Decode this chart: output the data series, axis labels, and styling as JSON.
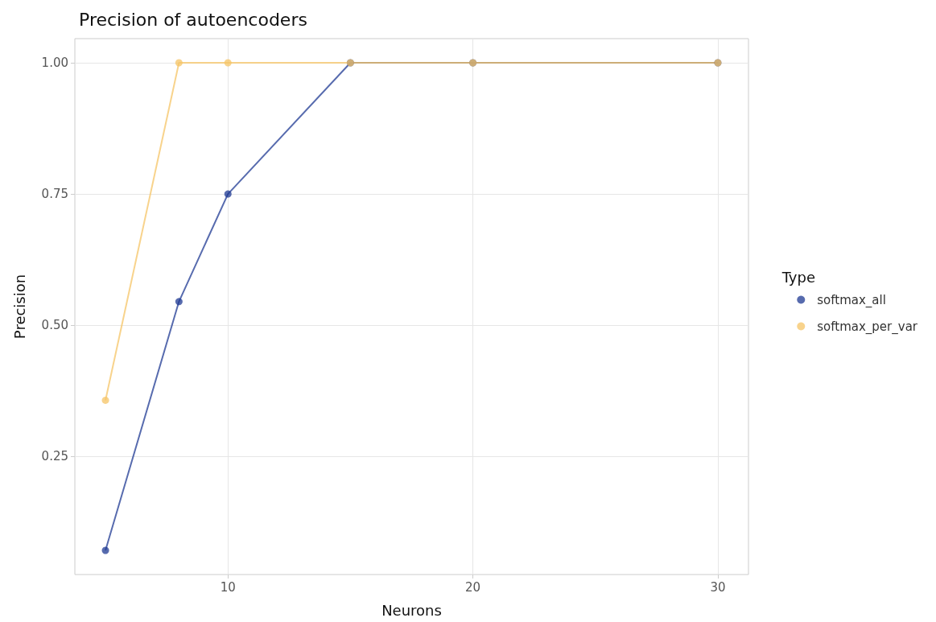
{
  "chart_data": {
    "type": "line",
    "title": "Precision of autoencoders",
    "xlabel": "Neurons",
    "ylabel": "Precision",
    "legend_title": "Type",
    "x": [
      5,
      8,
      10,
      15,
      20,
      30
    ],
    "series": [
      {
        "name": "softmax_all",
        "color": "#1f3a93",
        "values": [
          0.071,
          0.545,
          0.75,
          1,
          1,
          1
        ]
      },
      {
        "name": "softmax_per_var",
        "color": "#f6c465",
        "values": [
          0.357,
          1,
          1,
          1,
          1,
          1
        ]
      }
    ],
    "xlim": [
      3.75,
      31.25
    ],
    "xticks": [
      10,
      20,
      30
    ],
    "ylim": [
      0.025,
      1.046
    ],
    "yticks": [
      0.25,
      {
        "value": 0.5,
        "label": "0.50"
      },
      0.75,
      {
        "value": 1,
        "label": "1.00"
      }
    ],
    "grid": true,
    "legend": "right",
    "marker": "circle",
    "line_style": "solid"
  }
}
